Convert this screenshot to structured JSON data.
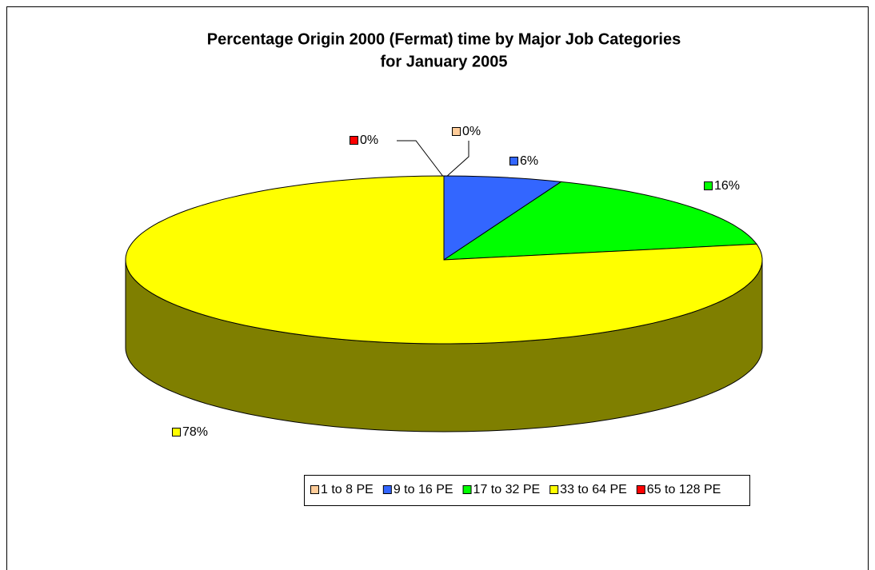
{
  "chart_data": {
    "type": "pie3d",
    "title": [
      "Percentage Origin 2000 (Fermat) time by Major Job Categories",
      "for January 2005"
    ],
    "categories": [
      "1 to 8 PE",
      "9 to 16 PE",
      "17 to 32 PE",
      "33 to 64 PE",
      "65 to 128 PE"
    ],
    "values": [
      0,
      6,
      16,
      78,
      0
    ],
    "value_labels": [
      "0%",
      "6%",
      "16%",
      "78%",
      "0%"
    ],
    "colors": [
      "#FFCC99",
      "#3366FF",
      "#00FF00",
      "#FFFF00",
      "#FF0000"
    ],
    "legend": "bottom"
  }
}
